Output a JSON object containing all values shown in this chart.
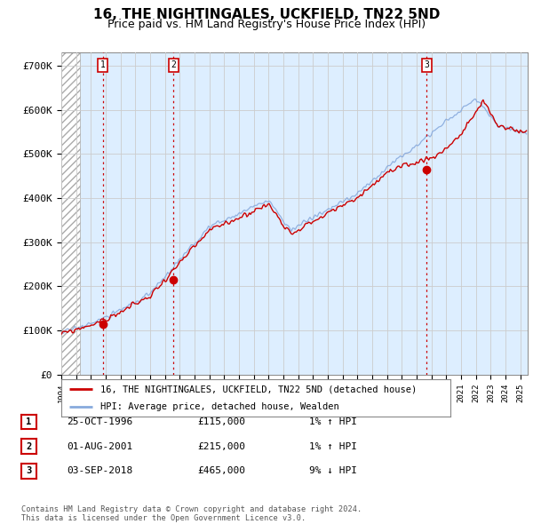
{
  "title": "16, THE NIGHTINGALES, UCKFIELD, TN22 5ND",
  "subtitle": "Price paid vs. HM Land Registry's House Price Index (HPI)",
  "ylim": [
    0,
    730000
  ],
  "yticks": [
    0,
    100000,
    200000,
    300000,
    400000,
    500000,
    600000,
    700000
  ],
  "ytick_labels": [
    "£0",
    "£100K",
    "£200K",
    "£300K",
    "£400K",
    "£500K",
    "£600K",
    "£700K"
  ],
  "xlim_start": 1994.0,
  "xlim_end": 2025.5,
  "hatch_end": 1995.25,
  "sale_dates": [
    1996.81,
    2001.58,
    2018.67
  ],
  "sale_prices": [
    115000,
    215000,
    465000
  ],
  "sale_labels": [
    "1",
    "2",
    "3"
  ],
  "legend_line1": "16, THE NIGHTINGALES, UCKFIELD, TN22 5ND (detached house)",
  "legend_line2": "HPI: Average price, detached house, Wealden",
  "table_data": [
    [
      "1",
      "25-OCT-1996",
      "£115,000",
      "1% ↑ HPI"
    ],
    [
      "2",
      "01-AUG-2001",
      "£215,000",
      "1% ↑ HPI"
    ],
    [
      "3",
      "03-SEP-2018",
      "£465,000",
      "9% ↓ HPI"
    ]
  ],
  "footnote": "Contains HM Land Registry data © Crown copyright and database right 2024.\nThis data is licensed under the Open Government Licence v3.0.",
  "line_color_red": "#cc0000",
  "line_color_blue": "#88aadd",
  "hatch_color": "#aaaaaa",
  "grid_color": "#cccccc",
  "bg_color": "#ddeeff",
  "title_fontsize": 11,
  "subtitle_fontsize": 9,
  "axis_fontsize": 8,
  "xtick_years": [
    1994,
    1995,
    1996,
    1997,
    1998,
    1999,
    2000,
    2001,
    2002,
    2003,
    2004,
    2005,
    2006,
    2007,
    2008,
    2009,
    2010,
    2011,
    2012,
    2013,
    2014,
    2015,
    2016,
    2017,
    2018,
    2019,
    2020,
    2021,
    2022,
    2023,
    2024,
    2025
  ]
}
